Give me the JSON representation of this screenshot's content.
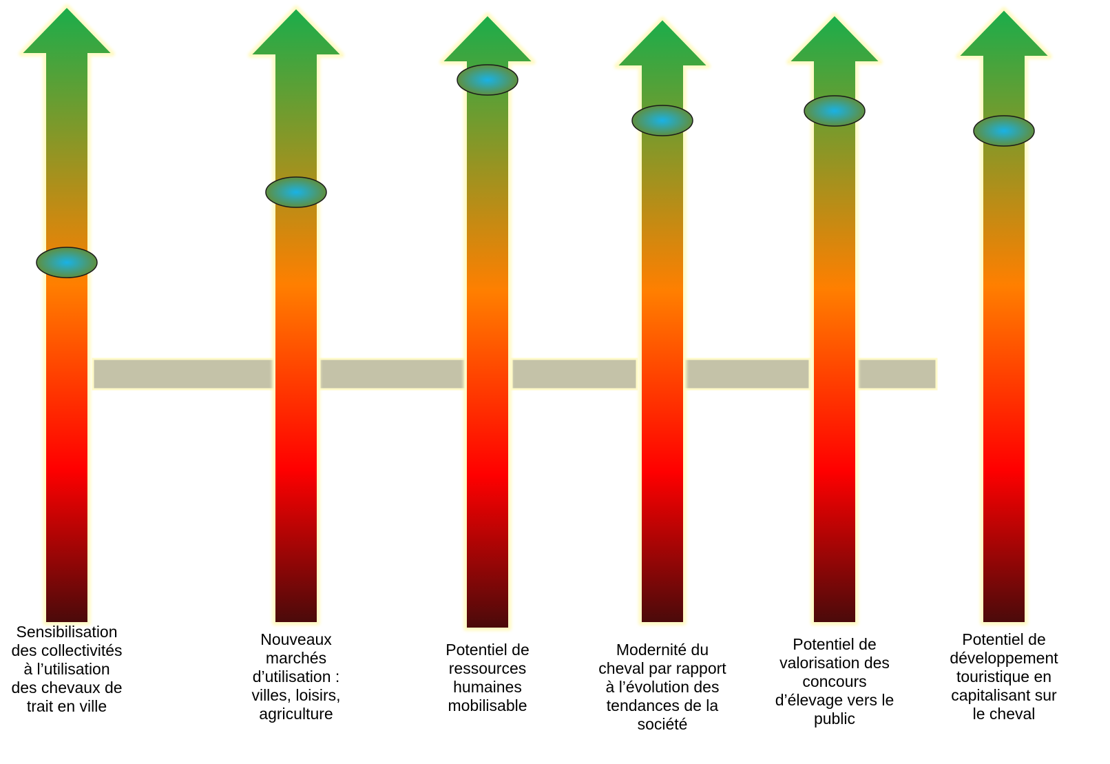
{
  "colors": {
    "top": "#1aad4b",
    "mid": "#ff7f00",
    "low": "#ff0000",
    "bottom": "#4a0a0a",
    "bar": "#c4c2a8",
    "glow": "#fffac8",
    "marker_center": "#19b2e6",
    "marker_edge": "#5f8f3f"
  },
  "arrows": [
    {
      "label_lines": [
        "Sensibilisation",
        "des collectivités",
        "à l’utilisation",
        "des chevaux de",
        "trait en ville"
      ],
      "level": 0.6
    },
    {
      "label_lines": [
        "Nouveaux",
        "marchés",
        "d’utilisation :",
        "villes, loisirs,",
        "agriculture"
      ],
      "level": 0.72
    },
    {
      "label_lines": [
        "Potentiel de",
        "ressources",
        "humaines",
        "mobilisable"
      ],
      "level": 0.97
    },
    {
      "label_lines": [
        "Modernité du",
        "cheval par rapport",
        "à l’évolution des",
        "tendances de la",
        "société"
      ],
      "level": 0.89
    },
    {
      "label_lines": [
        "Potentiel de",
        "valorisation des",
        "concours",
        "d’élevage vers le",
        "public"
      ],
      "level": 0.91
    },
    {
      "label_lines": [
        "Potentiel de",
        "développement",
        "touristique en",
        "capitalisant sur",
        "le cheval"
      ],
      "level": 0.86
    }
  ]
}
